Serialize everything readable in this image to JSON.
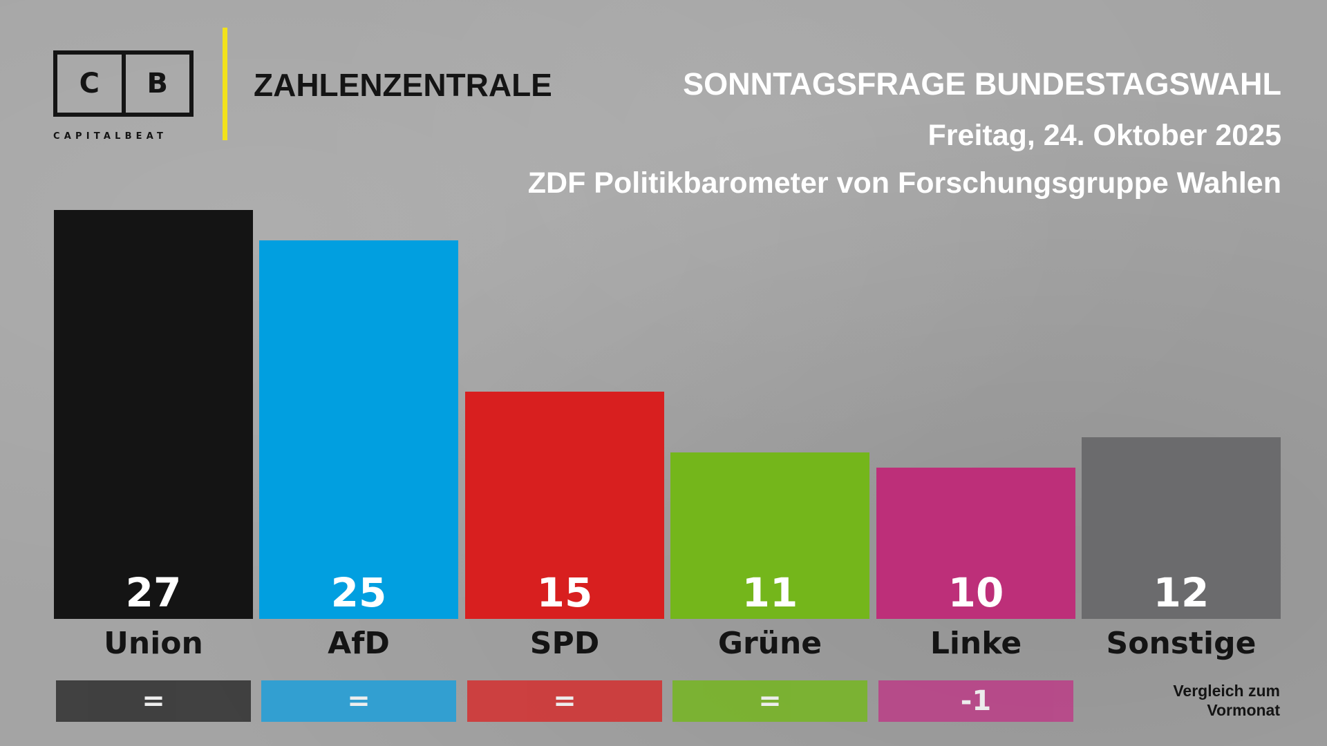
{
  "brand": {
    "logo_left": "C",
    "logo_right": "B",
    "logo_sub": "CAPITALBEAT",
    "section": "ZAHLENZENTRALE",
    "accent": "#f2e21b"
  },
  "header": {
    "title": "SONNTAGSFRAGE BUNDESTAGSWAHL",
    "date": "Freitag, 24. Oktober 2025",
    "source": "ZDF Politikbarometer von Forschungsgruppe Wahlen"
  },
  "note": {
    "line1": "Vergleich zum",
    "line2": "Vormonat"
  },
  "chart_data": {
    "type": "bar",
    "title": "SONNTAGSFRAGE BUNDESTAGSWAHL",
    "xlabel": "",
    "ylabel": "",
    "ylim": [
      0,
      27
    ],
    "categories": [
      "Union",
      "AfD",
      "SPD",
      "Grüne",
      "Linke",
      "Sonstige"
    ],
    "values": [
      27,
      25,
      15,
      11,
      10,
      12
    ],
    "changes": [
      "=",
      "=",
      "=",
      "=",
      "-1",
      ""
    ],
    "colors": [
      "#141414",
      "#019fe0",
      "#d81f1f",
      "#74b61b",
      "#bd2f79",
      "#6b6b6d"
    ],
    "change_colors": [
      "#2b2b2b",
      "#1a9fdc",
      "#d62b2b",
      "#74b71c",
      "#bd3a86",
      ""
    ]
  }
}
